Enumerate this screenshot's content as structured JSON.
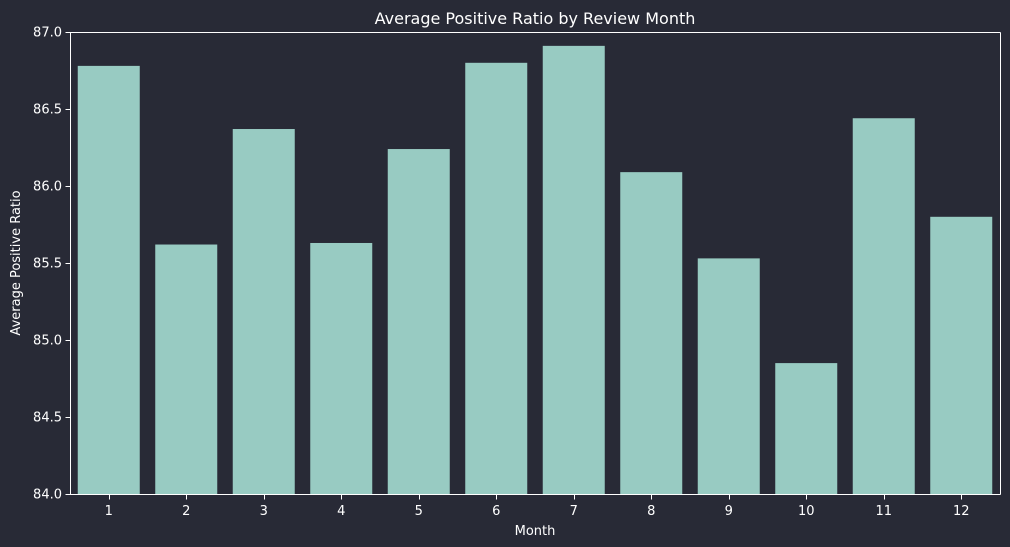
{
  "chart_data": {
    "type": "bar",
    "title": "Average Positive Ratio by Review Month",
    "xlabel": "Month",
    "ylabel": "Average Positive Ratio",
    "categories": [
      "1",
      "2",
      "3",
      "4",
      "5",
      "6",
      "7",
      "8",
      "9",
      "10",
      "11",
      "12"
    ],
    "values": [
      86.78,
      85.62,
      86.37,
      85.63,
      86.24,
      86.8,
      86.91,
      86.09,
      85.53,
      84.85,
      86.44,
      85.8
    ],
    "ylim": [
      84.0,
      87.0
    ],
    "yticks": [
      "84.0",
      "84.5",
      "85.0",
      "85.5",
      "86.0",
      "86.5",
      "87.0"
    ],
    "grid": false,
    "colors": {
      "background": "#282a36",
      "bar": "#98cbc2",
      "text": "#ffffff",
      "axis": "#ffffff"
    }
  }
}
